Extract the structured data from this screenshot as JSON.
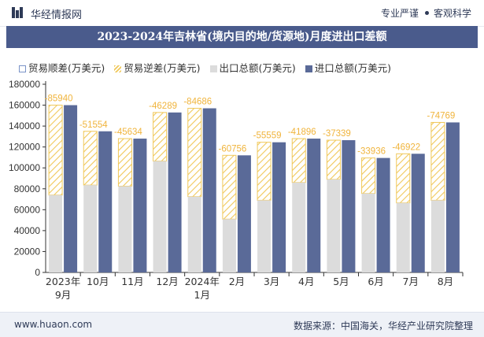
{
  "header": {
    "brand": "华经情报网",
    "tag1": "专业严谨",
    "tag2": "客观科学"
  },
  "title": "2023-2024年吉林省(境内目的地/货源地)月度进出口差额",
  "footer": {
    "site": "www.huaon.com",
    "source": "数据来源：中国海关，华经产业研究院整理"
  },
  "colors": {
    "export": "#dcdcdc",
    "import": "#5a6a98",
    "surplus_hatch": "#f0c85a",
    "deficit_hatch": "#f0c85a",
    "deficit_label": "#f0b43c",
    "title_bar": "#4a5b8c"
  },
  "chart_data": {
    "type": "bar",
    "categories": [
      "2023年\n9月",
      "10月",
      "11月",
      "12月",
      "2024年\n1月",
      "2月",
      "3月",
      "4月",
      "5月",
      "6月",
      "7月",
      "8月"
    ],
    "series": [
      {
        "name": "贸易顺差(万美元)",
        "values": [
          null,
          null,
          null,
          null,
          null,
          null,
          null,
          null,
          null,
          null,
          null,
          null
        ]
      },
      {
        "name": "贸易逆差(万美元)",
        "values": [
          -85940,
          -51554,
          -45634,
          -46289,
          -84686,
          -60756,
          -55559,
          -41896,
          -37339,
          -33936,
          -46922,
          -74769
        ]
      },
      {
        "name": "出口总额(万美元)",
        "values": [
          74000,
          83500,
          82500,
          106500,
          72500,
          51000,
          69000,
          86000,
          89000,
          75500,
          66500,
          69000
        ]
      },
      {
        "name": "进口总额(万美元)",
        "values": [
          160000,
          135000,
          128000,
          153000,
          157000,
          112000,
          124500,
          128000,
          126500,
          109500,
          113500,
          143500
        ]
      }
    ],
    "ylim": [
      0,
      180000
    ],
    "yticks": [
      0,
      20000,
      40000,
      60000,
      80000,
      100000,
      120000,
      140000,
      160000,
      180000
    ],
    "grid": false,
    "legend": "top-left"
  }
}
